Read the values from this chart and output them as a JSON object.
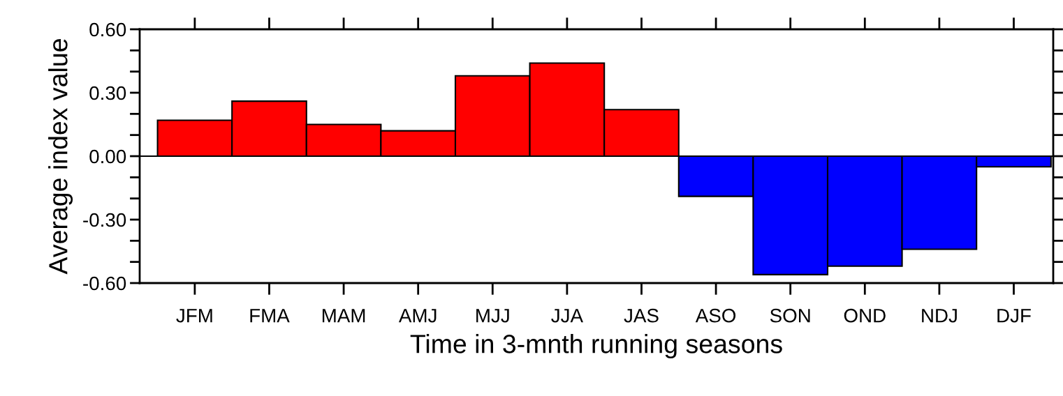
{
  "chart_data": {
    "type": "bar",
    "xlabel": "Time in 3-mnth running seasons",
    "ylabel": "Average index value",
    "categories": [
      "JFM",
      "FMA",
      "MAM",
      "AMJ",
      "MJJ",
      "JJA",
      "JAS",
      "ASO",
      "SON",
      "OND",
      "NDJ",
      "DJF"
    ],
    "values": [
      0.17,
      0.26,
      0.15,
      0.12,
      0.38,
      0.44,
      0.22,
      -0.19,
      -0.56,
      -0.52,
      -0.44,
      -0.05
    ],
    "colors": [
      "#ff0000",
      "#ff0000",
      "#ff0000",
      "#ff0000",
      "#ff0000",
      "#ff0000",
      "#ff0000",
      "#0000ff",
      "#0000ff",
      "#0000ff",
      "#0000ff",
      "#0000ff"
    ],
    "ylim": [
      -0.6,
      0.6
    ],
    "yticks": [
      {
        "value": -0.6,
        "label": "-0.60"
      },
      {
        "value": -0.5,
        "label": null
      },
      {
        "value": -0.4,
        "label": null
      },
      {
        "value": -0.3,
        "label": "-0.30"
      },
      {
        "value": -0.2,
        "label": null
      },
      {
        "value": -0.1,
        "label": null
      },
      {
        "value": 0,
        "label": "0.00"
      },
      {
        "value": 0.1,
        "label": null
      },
      {
        "value": 0.2,
        "label": null
      },
      {
        "value": 0.3,
        "label": "0.30"
      },
      {
        "value": 0.4,
        "label": null
      },
      {
        "value": 0.5,
        "label": null
      },
      {
        "value": 0.6,
        "label": "0.60"
      }
    ],
    "ref_lines": [
      {
        "axis": "y",
        "value": 0,
        "color": "#000000"
      }
    ],
    "grid": false,
    "legend": false
  }
}
